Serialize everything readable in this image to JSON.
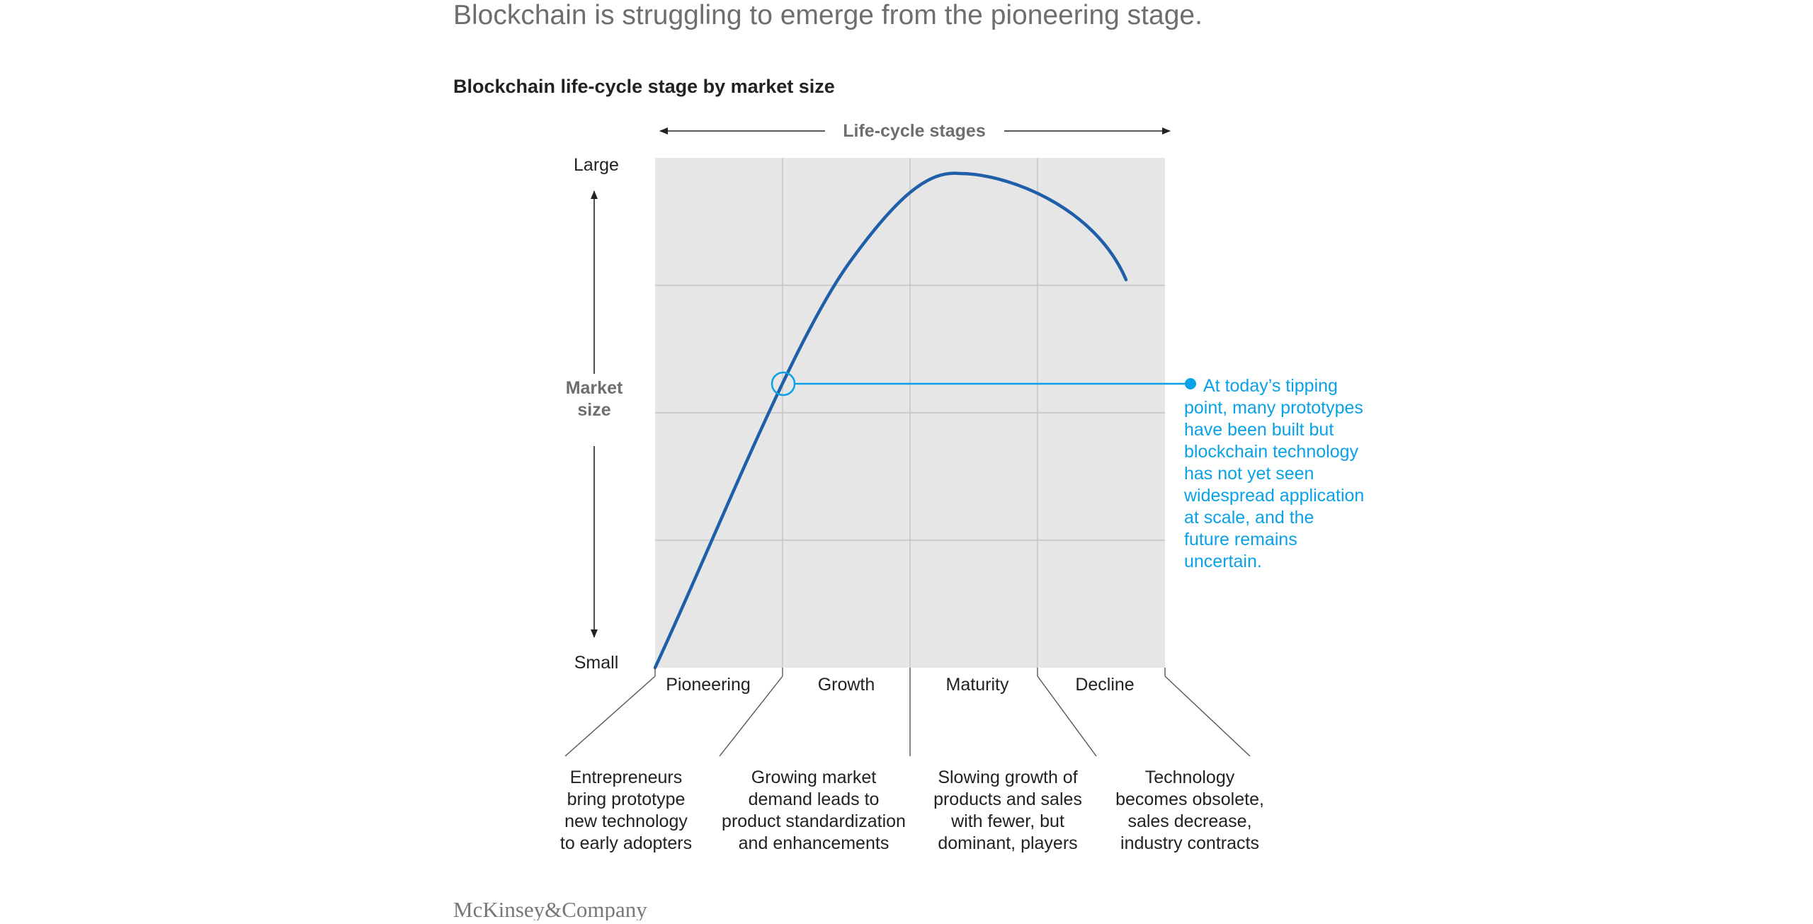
{
  "headline": "Blockchain is struggling to emerge from the pioneering stage.",
  "chart_data": {
    "type": "line",
    "title": "Blockchain life-cycle stage by market size",
    "xlabel": "Life-cycle stages",
    "ylabel": "Market size",
    "ytick_labels": [
      "Large",
      "Small"
    ],
    "categories": [
      "Pioneering",
      "Growth",
      "Maturity",
      "Decline"
    ],
    "stage_descriptions": [
      "Entrepreneurs bring prototype new technology to early adopters",
      "Growing market demand leads to product standardization and enhancements",
      "Slowing growth of products and sales with fewer, but dominant, players",
      "Technology becomes obsolete, sales decrease, industry contracts"
    ],
    "annotation": {
      "text": "At today’s tipping point, many prototypes have been built but blockchain technology has not yet seen widespread application at scale, and the future remains uncertain."
    },
    "grid": true,
    "colors": {
      "curve": "#1f5ea8",
      "annotation": "#0aa1e6",
      "plot_background": "#e6e6e6",
      "gridline": "#c4c4c4",
      "text": "#222222",
      "muted_text": "#6e6e6e"
    }
  },
  "footer": {
    "brand": "McKinsey&Company"
  }
}
